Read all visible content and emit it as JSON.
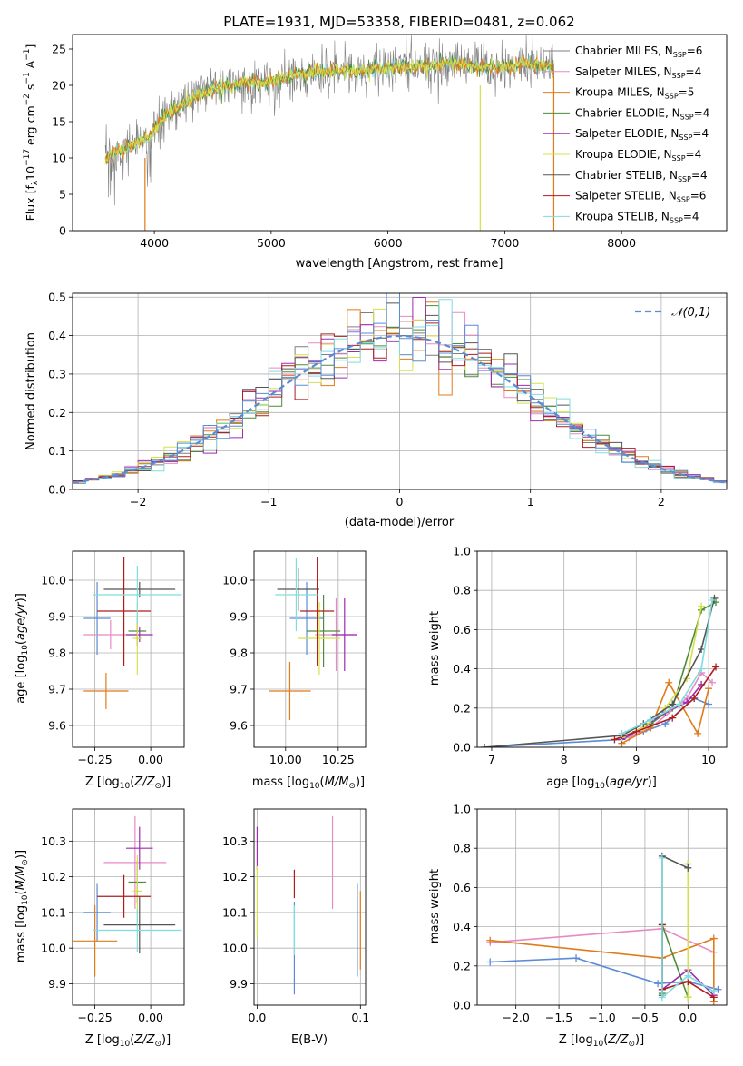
{
  "colors": {
    "chabrier_miles": "#7f7f7f",
    "salpeter_miles": "#e78ac3",
    "kroupa_miles": "#e07b1a",
    "chabrier_elodie": "#4d8c3a",
    "salpeter_elodie": "#9c2bb3",
    "kroupa_elodie": "#d5e04a",
    "chabrier_stelib": "#555555",
    "salpeter_stelib": "#b01c1c",
    "kroupa_stelib": "#7fdde0",
    "normal_curve": "#5b8bd6",
    "blue_model": "#5b7fd6",
    "teal_model": "#3aa5a0"
  },
  "chart_data": [
    {
      "type": "line",
      "title": "PLATE=1931, MJD=53358, FIBERID=0481, z=0.062",
      "xlabel": "wavelength [Angstrom, rest frame]",
      "ylabel": "Flux [f_λ 10^-17 erg cm^-2 s^-1 A^-1]",
      "xlim": [
        3300,
        8900
      ],
      "ylim": [
        0,
        27
      ],
      "xticks": [
        "4000",
        "5000",
        "6000",
        "7000",
        "8000"
      ],
      "yticks": [
        "0",
        "5",
        "10",
        "15",
        "20",
        "25"
      ],
      "legend_position": "right",
      "legend": [
        {
          "label": "Chabrier MILES, N_SSP=6",
          "color_key": "chabrier_miles"
        },
        {
          "label": "Salpeter MILES, N_SSP=4",
          "color_key": "salpeter_miles"
        },
        {
          "label": "Kroupa MILES, N_SSP=5",
          "color_key": "kroupa_miles"
        },
        {
          "label": "Chabrier ELODIE, N_SSP=4",
          "color_key": "chabrier_elodie"
        },
        {
          "label": "Salpeter ELODIE, N_SSP=4",
          "color_key": "salpeter_elodie"
        },
        {
          "label": "Kroupa ELODIE, N_SSP=4",
          "color_key": "kroupa_elodie"
        },
        {
          "label": "Chabrier STELIB, N_SSP=4",
          "color_key": "chabrier_stelib"
        },
        {
          "label": "Salpeter STELIB, N_SSP=6",
          "color_key": "salpeter_stelib"
        },
        {
          "label": "Kroupa STELIB, N_SSP=4",
          "color_key": "kroupa_stelib"
        }
      ],
      "continuum": {
        "x": [
          3580,
          3700,
          3850,
          3950,
          4100,
          4300,
          4500,
          4800,
          5000,
          5200,
          5500,
          5800,
          6000,
          6200,
          6500,
          6800,
          7000,
          7200,
          7400
        ],
        "y": [
          10,
          11,
          12,
          13,
          16,
          18,
          19.5,
          20.5,
          20.5,
          21.5,
          22,
          22,
          22.5,
          22.5,
          23,
          22.5,
          22.5,
          23,
          22.5
        ]
      },
      "data_noise_range": [
        8000,
        8900
      ]
    },
    {
      "type": "step",
      "xlabel": "(data-model)/error",
      "ylabel": "Normed distribution",
      "xlim": [
        -2.5,
        2.5
      ],
      "ylim": [
        0,
        0.51
      ],
      "xticks": [
        "−2",
        "−1",
        "0",
        "1",
        "2"
      ],
      "yticks": [
        "0.0",
        "0.1",
        "0.2",
        "0.3",
        "0.4",
        "0.5"
      ],
      "legend": [
        {
          "label": "𝒩(0,1)",
          "style": "dashed",
          "color_key": "normal_curve"
        }
      ],
      "bin_width": 0.1,
      "normal_mean": 0,
      "normal_sigma": 1
    },
    {
      "type": "errorbar",
      "xlabel": "Z [log10(Z/Z⊙)]",
      "ylabel": "age [log10(age/yr)]",
      "xlim": [
        -0.35,
        0.15
      ],
      "ylim": [
        9.54,
        10.08
      ],
      "xticks": [
        "−0.25",
        "0.00"
      ],
      "yticks": [
        "9.6",
        "9.7",
        "9.8",
        "9.9",
        "10.0"
      ],
      "points": [
        {
          "x": -0.24,
          "xerr": 0.06,
          "y": 9.895,
          "yerr": 0.1,
          "color_key": "normal_curve"
        },
        {
          "x": -0.18,
          "xerr": 0.12,
          "y": 9.85,
          "yerr": 0.04,
          "color_key": "salpeter_miles"
        },
        {
          "x": -0.2,
          "xerr": 0.1,
          "y": 9.695,
          "yerr": 0.05,
          "color_key": "kroupa_miles"
        },
        {
          "x": -0.06,
          "xerr": 0.04,
          "y": 9.86,
          "yerr": 0.04,
          "color_key": "chabrier_elodie"
        },
        {
          "x": -0.05,
          "xerr": 0.06,
          "y": 9.85,
          "yerr": 0.02,
          "color_key": "salpeter_elodie"
        },
        {
          "x": -0.06,
          "xerr": 0.02,
          "y": 9.84,
          "yerr": 0.1,
          "color_key": "kroupa_elodie"
        },
        {
          "x": -0.05,
          "xerr": 0.16,
          "y": 9.975,
          "yerr": 0.02,
          "color_key": "chabrier_stelib"
        },
        {
          "x": -0.12,
          "xerr": 0.12,
          "y": 9.915,
          "yerr": 0.15,
          "color_key": "salpeter_stelib"
        },
        {
          "x": -0.06,
          "xerr": 0.2,
          "y": 9.96,
          "yerr": 0.08,
          "color_key": "kroupa_stelib"
        }
      ]
    },
    {
      "type": "errorbar",
      "xlabel": "mass [log10(M/M⊙)]",
      "xlim": [
        9.85,
        10.38
      ],
      "ylim": [
        9.54,
        10.08
      ],
      "xticks": [
        "10.00",
        "10.25"
      ],
      "yticks": [
        "9.6",
        "9.7",
        "9.8",
        "9.9",
        "10.0"
      ],
      "points": [
        {
          "x": 10.1,
          "xerr": 0.08,
          "y": 9.895,
          "yerr": 0.1,
          "color_key": "normal_curve"
        },
        {
          "x": 10.24,
          "xerr": 0.1,
          "y": 9.85,
          "yerr": 0.1,
          "color_key": "salpeter_miles"
        },
        {
          "x": 10.02,
          "xerr": 0.1,
          "y": 9.695,
          "yerr": 0.08,
          "color_key": "kroupa_miles"
        },
        {
          "x": 10.18,
          "xerr": 0.08,
          "y": 9.86,
          "yerr": 0.1,
          "color_key": "chabrier_elodie"
        },
        {
          "x": 10.28,
          "xerr": 0.06,
          "y": 9.85,
          "yerr": 0.1,
          "color_key": "salpeter_elodie"
        },
        {
          "x": 10.16,
          "xerr": 0.1,
          "y": 9.84,
          "yerr": 0.1,
          "color_key": "kroupa_elodie"
        },
        {
          "x": 10.06,
          "xerr": 0.1,
          "y": 9.975,
          "yerr": 0.06,
          "color_key": "chabrier_stelib"
        },
        {
          "x": 10.15,
          "xerr": 0.08,
          "y": 9.915,
          "yerr": 0.15,
          "color_key": "salpeter_stelib"
        },
        {
          "x": 10.05,
          "xerr": 0.1,
          "y": 9.96,
          "yerr": 0.1,
          "color_key": "kroupa_stelib"
        }
      ]
    },
    {
      "type": "line",
      "xlabel": "age [log10(age/yr)]",
      "ylabel": "mass weight",
      "xlim": [
        6.8,
        10.25
      ],
      "ylim": [
        0,
        1
      ],
      "xticks": [
        "7",
        "8",
        "9",
        "10"
      ],
      "yticks": [
        "0.0",
        "0.2",
        "0.4",
        "0.6",
        "0.8",
        "1.0"
      ],
      "series": [
        {
          "color_key": "normal_curve",
          "x": [
            6.9,
            8.8,
            9.1,
            9.4,
            9.8,
            10.0
          ],
          "y": [
            0.0,
            0.04,
            0.08,
            0.12,
            0.25,
            0.22
          ]
        },
        {
          "color_key": "salpeter_miles",
          "x": [
            8.9,
            9.2,
            9.7,
            9.9,
            10.05
          ],
          "y": [
            0.05,
            0.1,
            0.25,
            0.38,
            0.33
          ]
        },
        {
          "color_key": "kroupa_miles",
          "x": [
            8.8,
            9.2,
            9.45,
            9.85,
            10.0
          ],
          "y": [
            0.02,
            0.1,
            0.33,
            0.07,
            0.3
          ]
        },
        {
          "color_key": "chabrier_elodie",
          "x": [
            8.8,
            9.2,
            9.5,
            9.9,
            10.1
          ],
          "y": [
            0.05,
            0.12,
            0.2,
            0.7,
            0.74
          ]
        },
        {
          "color_key": "salpeter_elodie",
          "x": [
            8.8,
            9.1,
            9.4,
            9.7,
            9.9
          ],
          "y": [
            0.04,
            0.1,
            0.18,
            0.23,
            0.32
          ]
        },
        {
          "color_key": "kroupa_elodie",
          "x": [
            8.8,
            9.1,
            9.4,
            9.7,
            9.9
          ],
          "y": [
            0.05,
            0.1,
            0.2,
            0.35,
            0.72
          ]
        },
        {
          "color_key": "chabrier_stelib",
          "x": [
            6.9,
            8.8,
            9.1,
            9.5,
            9.9,
            10.08
          ],
          "y": [
            0.0,
            0.06,
            0.12,
            0.22,
            0.5,
            0.76
          ]
        },
        {
          "color_key": "salpeter_stelib",
          "x": [
            8.7,
            9.0,
            9.5,
            9.8,
            10.1
          ],
          "y": [
            0.04,
            0.08,
            0.15,
            0.25,
            0.41
          ]
        },
        {
          "color_key": "kroupa_stelib",
          "x": [
            8.8,
            9.2,
            9.6,
            9.9,
            10.05
          ],
          "y": [
            0.07,
            0.14,
            0.22,
            0.4,
            0.75
          ]
        }
      ]
    },
    {
      "type": "errorbar",
      "xlabel": "Z [log10(Z/Z⊙)]",
      "ylabel": "mass [log10(M/M⊙)]",
      "xlim": [
        -0.35,
        0.15
      ],
      "ylim": [
        9.84,
        10.39
      ],
      "xticks": [
        "−0.25",
        "0.00"
      ],
      "yticks": [
        "9.9",
        "10.0",
        "10.1",
        "10.2",
        "10.3"
      ],
      "points": [
        {
          "x": -0.24,
          "xerr": 0.06,
          "y": 10.1,
          "yerr": 0.08,
          "color_key": "normal_curve"
        },
        {
          "x": -0.07,
          "xerr": 0.14,
          "y": 10.24,
          "yerr": 0.13,
          "color_key": "salpeter_miles"
        },
        {
          "x": -0.25,
          "xerr": 0.1,
          "y": 10.02,
          "yerr": 0.1,
          "color_key": "kroupa_miles"
        },
        {
          "x": -0.06,
          "xerr": 0.04,
          "y": 10.185,
          "yerr": 0.06,
          "color_key": "chabrier_elodie"
        },
        {
          "x": -0.05,
          "xerr": 0.06,
          "y": 10.28,
          "yerr": 0.06,
          "color_key": "salpeter_elodie"
        },
        {
          "x": -0.06,
          "xerr": 0.02,
          "y": 10.16,
          "yerr": 0.1,
          "color_key": "kroupa_elodie"
        },
        {
          "x": -0.05,
          "xerr": 0.16,
          "y": 10.065,
          "yerr": 0.08,
          "color_key": "chabrier_stelib"
        },
        {
          "x": -0.12,
          "xerr": 0.12,
          "y": 10.145,
          "yerr": 0.06,
          "color_key": "salpeter_stelib"
        },
        {
          "x": -0.06,
          "xerr": 0.2,
          "y": 10.05,
          "yerr": 0.06,
          "color_key": "kroupa_stelib"
        }
      ]
    },
    {
      "type": "errorbar",
      "xlabel": "E(B-V)",
      "xlim": [
        -0.003,
        0.105
      ],
      "ylim": [
        9.84,
        10.39
      ],
      "xticks": [
        "0.0",
        "0.1"
      ],
      "yticks": [
        "9.9",
        "10.0",
        "10.1",
        "10.2",
        "10.3"
      ],
      "points": [
        {
          "x": 0.0,
          "y": 10.28,
          "yerr": 0.06,
          "color_key": "salpeter_elodie"
        },
        {
          "x": 0.0,
          "y": 10.13,
          "yerr": 0.1,
          "color_key": "kroupa_elodie"
        },
        {
          "x": 0.036,
          "y": 10.18,
          "yerr": 0.04,
          "color_key": "salpeter_stelib"
        },
        {
          "x": 0.036,
          "y": 10.0,
          "yerr": 0.13,
          "color_key": "normal_curve"
        },
        {
          "x": 0.036,
          "y": 10.05,
          "yerr": 0.07,
          "color_key": "kroupa_stelib"
        },
        {
          "x": 0.073,
          "y": 10.24,
          "yerr": 0.13,
          "color_key": "salpeter_miles"
        },
        {
          "x": 0.097,
          "y": 10.05,
          "yerr": 0.13,
          "color_key": "normal_curve"
        },
        {
          "x": 0.1,
          "y": 10.05,
          "yerr": 0.11,
          "color_key": "kroupa_miles"
        }
      ]
    },
    {
      "type": "line",
      "xlabel": "Z [log10(Z/Z⊙)]",
      "ylabel": "mass weight",
      "xlim": [
        -2.45,
        0.45
      ],
      "ylim": [
        0,
        1
      ],
      "xticks": [
        "−2.0",
        "−1.5",
        "−1.0",
        "−0.5",
        "0.0"
      ],
      "yticks": [
        "0.0",
        "0.2",
        "0.4",
        "0.6",
        "0.8",
        "1.0"
      ],
      "series": [
        {
          "color_key": "normal_curve",
          "x": [
            -2.3,
            -1.3,
            -0.35,
            0.0,
            0.35
          ],
          "y": [
            0.22,
            0.24,
            0.11,
            0.12,
            0.08
          ]
        },
        {
          "color_key": "salpeter_miles",
          "x": [
            -2.3,
            -0.3,
            0.3
          ],
          "y": [
            0.32,
            0.39,
            0.27
          ]
        },
        {
          "color_key": "kroupa_miles",
          "x": [
            -2.3,
            -0.3,
            0.3,
            0.3
          ],
          "y": [
            0.33,
            0.24,
            0.34,
            0.02
          ]
        },
        {
          "color_key": "chabrier_elodie",
          "x": [
            -0.3,
            -0.3,
            0.0,
            0.0
          ],
          "y": [
            0.06,
            0.41,
            0.04,
            0.72
          ]
        },
        {
          "color_key": "salpeter_elodie",
          "x": [
            -0.3,
            0.0,
            0.3
          ],
          "y": [
            0.08,
            0.18,
            0.05
          ]
        },
        {
          "color_key": "kroupa_elodie",
          "x": [
            0.0,
            0.0
          ],
          "y": [
            0.04,
            0.72
          ]
        },
        {
          "color_key": "chabrier_stelib",
          "x": [
            -0.3,
            -0.3,
            0.0
          ],
          "y": [
            0.05,
            0.76,
            0.7
          ]
        },
        {
          "color_key": "salpeter_stelib",
          "x": [
            -0.3,
            -0.3,
            0.0,
            0.3
          ],
          "y": [
            0.41,
            0.08,
            0.12,
            0.04
          ]
        },
        {
          "color_key": "kroupa_stelib",
          "x": [
            -0.3,
            -0.3,
            0.0,
            0.3
          ],
          "y": [
            0.75,
            0.04,
            0.15,
            0.07
          ]
        }
      ]
    }
  ]
}
